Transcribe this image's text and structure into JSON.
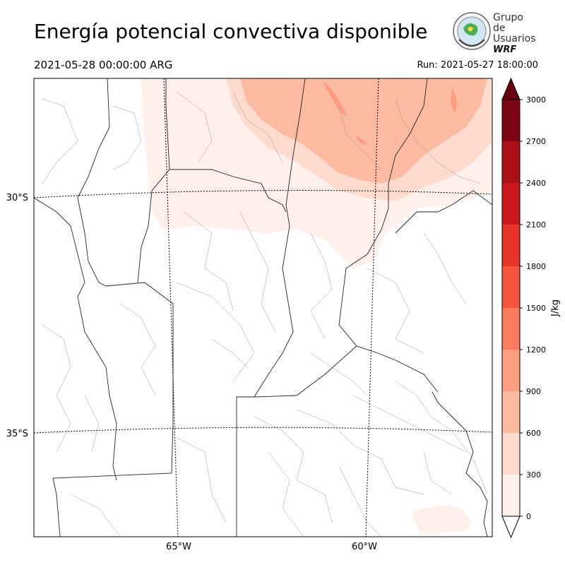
{
  "header": {
    "title": "Energía potencial convectiva disponible",
    "valid_time": "2021-05-28 00:00:00 ARG",
    "run_time": "Run: 2021-05-27 18:00:00"
  },
  "logo": {
    "line1": "Grupo de",
    "line2": "Usuarios",
    "line3": "WRF"
  },
  "map": {
    "lat_labels": [
      "30°S",
      "35°S"
    ],
    "lon_labels": [
      "65°W",
      "60°W"
    ]
  },
  "colorbar": {
    "label": "J/kg",
    "ticks": [
      "0",
      "300",
      "600",
      "900",
      "1200",
      "1500",
      "1800",
      "2100",
      "2400",
      "2700",
      "3000"
    ],
    "colors": [
      "#fff0eb",
      "#fedbcc",
      "#fcbba1",
      "#fc9f81",
      "#fb7c5c",
      "#f5553c",
      "#e83429",
      "#cb181d",
      "#ab1016",
      "#7b0510"
    ],
    "extend_color": "#67000d",
    "extend_low_color": "#ffffff"
  }
}
